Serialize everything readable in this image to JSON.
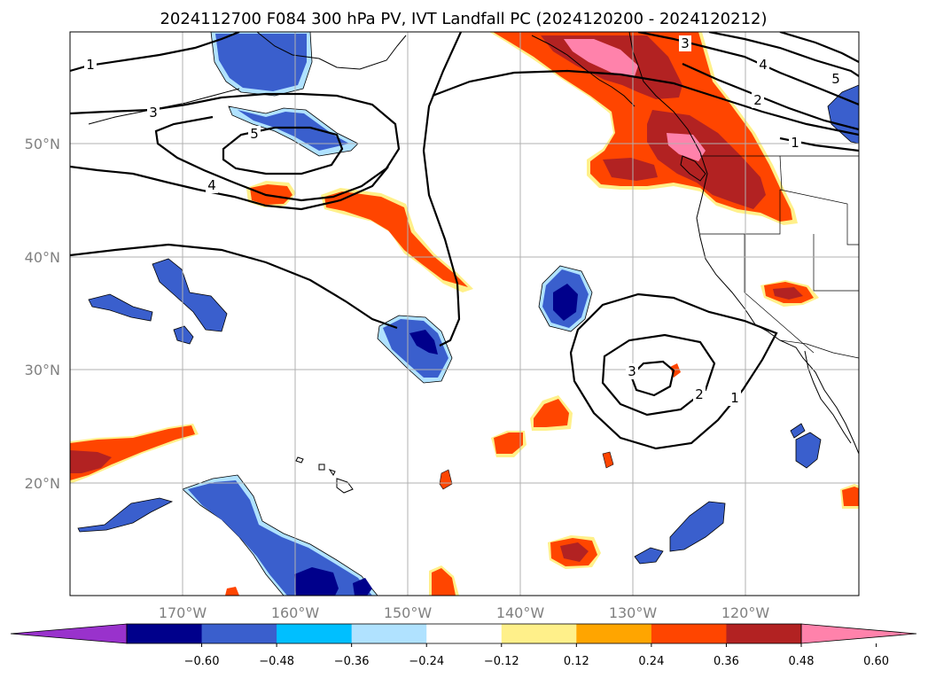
{
  "title": "2024112700 F084 300 hPa PV, IVT Landfall PC (2024120200 - 2024120212)",
  "lat_labels": [
    "50°N",
    "40°N",
    "30°N",
    "20°N"
  ],
  "lon_labels": [
    "170°W",
    "160°W",
    "150°W",
    "140°W",
    "130°W",
    "120°W"
  ],
  "colorbar": {
    "tick_labels": [
      "−0.60",
      "−0.48",
      "−0.36",
      "−0.24",
      "−0.12",
      "0.12",
      "0.24",
      "0.36",
      "0.48",
      "0.60"
    ],
    "colors": [
      "#9932cc",
      "#00008b",
      "#3a5fcd",
      "#00bfff",
      "#b0e2ff",
      "#ffffff",
      "#fff08a",
      "#ffa500",
      "#ff4500",
      "#b22222",
      "#ff82ab"
    ]
  },
  "contour_labels": {
    "c1a": "1",
    "c3a": "3",
    "c5a": "5",
    "c4a": "4",
    "c3b": "3",
    "c4b": "4",
    "c5b": "5",
    "c2b": "2",
    "c1b": "1",
    "c3c": "3",
    "c2c": "2",
    "c1c": "1"
  }
}
